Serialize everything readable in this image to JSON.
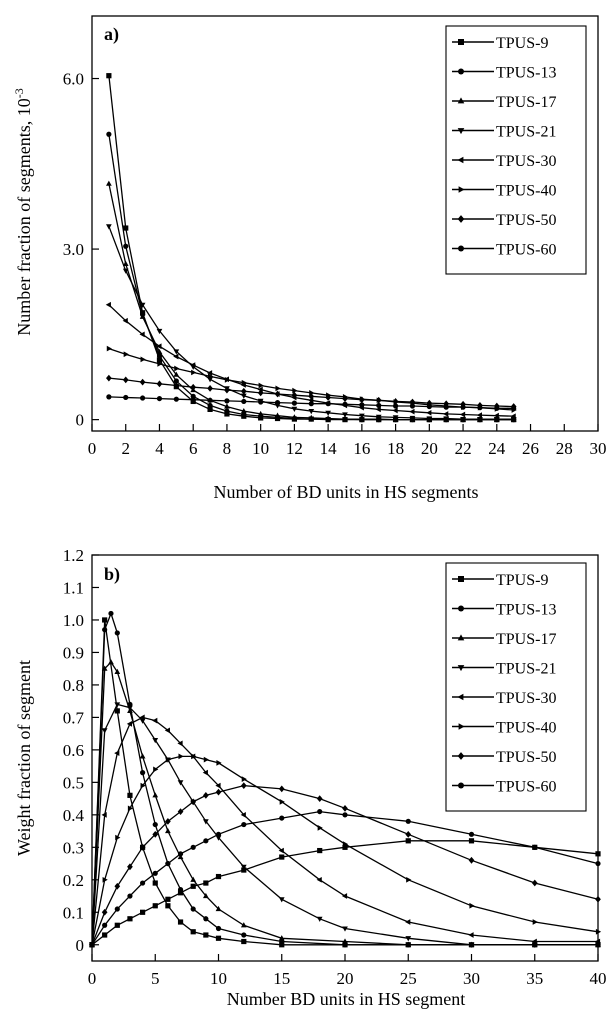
{
  "chart_data": [
    {
      "type": "line",
      "panel_label": "a)",
      "xlabel": "Number of BD units in HS segments",
      "ylabel": "Number fraction of segments, 10",
      "ylabel_sup": "-3",
      "xlim": [
        0,
        30
      ],
      "ylim": [
        -0.2,
        7.1
      ],
      "x_ticks": [
        0,
        2,
        4,
        6,
        8,
        10,
        12,
        14,
        16,
        18,
        20,
        22,
        24,
        26,
        28,
        30
      ],
      "x_tick_labels": [
        "0",
        "2",
        "4",
        "6",
        "8",
        "10",
        "12",
        "14",
        "16",
        "18",
        "20",
        "22",
        "24",
        "26",
        "28",
        "30"
      ],
      "y_ticks": [
        0,
        3.0,
        6.0
      ],
      "y_tick_labels": [
        "0",
        "3.0",
        "6.0"
      ],
      "grid": false,
      "legend_position": "top-right",
      "x": [
        1,
        2,
        3,
        4,
        5,
        6,
        7,
        8,
        9,
        10,
        11,
        12,
        13,
        14,
        15,
        16,
        17,
        18,
        19,
        20,
        21,
        22,
        23,
        24,
        25
      ],
      "series": [
        {
          "name": "TPUS-9",
          "marker": "square",
          "values": [
            6.05,
            3.37,
            1.88,
            1.05,
            0.58,
            0.32,
            0.18,
            0.1,
            0.06,
            0.03,
            0.02,
            0.01,
            0.01,
            0.0,
            0.0,
            0.0,
            0.0,
            0.0,
            0.0,
            0.0,
            0.0,
            0.0,
            0.0,
            0.0,
            0.0
          ]
        },
        {
          "name": "TPUS-13",
          "marker": "circle",
          "values": [
            5.02,
            3.05,
            1.85,
            1.12,
            0.68,
            0.41,
            0.25,
            0.15,
            0.09,
            0.06,
            0.04,
            0.02,
            0.01,
            0.01,
            0.01,
            0.0,
            0.0,
            0.0,
            0.0,
            0.0,
            0.0,
            0.0,
            0.0,
            0.0,
            0.0
          ]
        },
        {
          "name": "TPUS-17",
          "marker": "triangle-up",
          "values": [
            4.15,
            2.74,
            1.81,
            1.19,
            0.79,
            0.52,
            0.34,
            0.23,
            0.15,
            0.1,
            0.07,
            0.04,
            0.03,
            0.02,
            0.01,
            0.01,
            0.01,
            0.0,
            0.0,
            0.0,
            0.0,
            0.0,
            0.0,
            0.0,
            0.0
          ]
        },
        {
          "name": "TPUS-21",
          "marker": "triangle-down",
          "values": [
            3.4,
            2.62,
            2.02,
            1.56,
            1.2,
            0.93,
            0.71,
            0.55,
            0.42,
            0.33,
            0.25,
            0.19,
            0.15,
            0.12,
            0.09,
            0.07,
            0.05,
            0.04,
            0.03,
            0.02,
            0.02,
            0.01,
            0.01,
            0.01,
            0.01
          ]
        },
        {
          "name": "TPUS-30",
          "marker": "triangle-left",
          "values": [
            2.02,
            1.74,
            1.5,
            1.29,
            1.11,
            0.96,
            0.82,
            0.71,
            0.61,
            0.53,
            0.45,
            0.39,
            0.34,
            0.29,
            0.25,
            0.21,
            0.18,
            0.16,
            0.14,
            0.12,
            0.1,
            0.09,
            0.08,
            0.07,
            0.06
          ]
        },
        {
          "name": "TPUS-40",
          "marker": "triangle-right",
          "values": [
            1.25,
            1.15,
            1.06,
            0.98,
            0.9,
            0.83,
            0.76,
            0.7,
            0.65,
            0.6,
            0.55,
            0.51,
            0.47,
            0.43,
            0.4,
            0.36,
            0.34,
            0.31,
            0.29,
            0.26,
            0.24,
            0.22,
            0.21,
            0.19,
            0.17
          ]
        },
        {
          "name": "TPUS-50",
          "marker": "diamond",
          "values": [
            0.73,
            0.7,
            0.66,
            0.63,
            0.6,
            0.57,
            0.55,
            0.52,
            0.5,
            0.47,
            0.45,
            0.43,
            0.41,
            0.39,
            0.37,
            0.35,
            0.34,
            0.32,
            0.31,
            0.29,
            0.28,
            0.27,
            0.25,
            0.24,
            0.23
          ]
        },
        {
          "name": "TPUS-60",
          "marker": "circle",
          "values": [
            0.4,
            0.39,
            0.38,
            0.37,
            0.36,
            0.35,
            0.34,
            0.33,
            0.32,
            0.31,
            0.3,
            0.29,
            0.28,
            0.28,
            0.27,
            0.26,
            0.25,
            0.24,
            0.24,
            0.23,
            0.22,
            0.22,
            0.21,
            0.2,
            0.2
          ]
        }
      ]
    },
    {
      "type": "line",
      "panel_label": "b)",
      "xlabel": "Number BD units in HS segment",
      "ylabel": "Weight fraction of segment",
      "xlim": [
        0,
        40
      ],
      "ylim": [
        -0.05,
        1.2
      ],
      "x_ticks": [
        0,
        5,
        10,
        15,
        20,
        25,
        30,
        35,
        40
      ],
      "x_tick_labels": [
        "0",
        "5",
        "10",
        "15",
        "20",
        "25",
        "30",
        "35",
        "40"
      ],
      "y_ticks": [
        0,
        0.1,
        0.2,
        0.3,
        0.4,
        0.5,
        0.6,
        0.7,
        0.8,
        0.9,
        1.0,
        1.1,
        1.2
      ],
      "y_tick_labels": [
        "0",
        "0.1",
        "0.2",
        "0.3",
        "0.4",
        "0.5",
        "0.6",
        "0.7",
        "0.8",
        "0.9",
        "1.0",
        "1.1",
        "1.2"
      ],
      "grid": false,
      "legend_position": "top-right",
      "series": [
        {
          "name": "TPUS-9",
          "marker": "square",
          "peak": 1.0,
          "values": [
            [
              0,
              0.0
            ],
            [
              1,
              1.0
            ],
            [
              2,
              0.72
            ],
            [
              3,
              0.46
            ],
            [
              4,
              0.3
            ],
            [
              5,
              0.19
            ],
            [
              6,
              0.12
            ],
            [
              7,
              0.07
            ],
            [
              8,
              0.04
            ],
            [
              9,
              0.03
            ],
            [
              10,
              0.02
            ],
            [
              12,
              0.01
            ],
            [
              15,
              0.0
            ],
            [
              20,
              0.0
            ],
            [
              25,
              0.0
            ],
            [
              30,
              0.0
            ],
            [
              35,
              0.0
            ],
            [
              40,
              0.0
            ]
          ]
        },
        {
          "name": "TPUS-13",
          "marker": "circle",
          "peak": 1.0,
          "values": [
            [
              0,
              0.0
            ],
            [
              1,
              0.97
            ],
            [
              1.5,
              1.02
            ],
            [
              2,
              0.96
            ],
            [
              3,
              0.74
            ],
            [
              4,
              0.53
            ],
            [
              5,
              0.37
            ],
            [
              6,
              0.25
            ],
            [
              7,
              0.17
            ],
            [
              8,
              0.11
            ],
            [
              9,
              0.08
            ],
            [
              10,
              0.05
            ],
            [
              12,
              0.03
            ],
            [
              15,
              0.01
            ],
            [
              20,
              0.0
            ],
            [
              25,
              0.0
            ],
            [
              30,
              0.0
            ],
            [
              35,
              0.0
            ],
            [
              40,
              0.0
            ]
          ]
        },
        {
          "name": "TPUS-17",
          "marker": "triangle-up",
          "peak": 0.87,
          "values": [
            [
              0,
              0.0
            ],
            [
              1,
              0.85
            ],
            [
              1.5,
              0.87
            ],
            [
              2,
              0.84
            ],
            [
              3,
              0.72
            ],
            [
              4,
              0.58
            ],
            [
              5,
              0.46
            ],
            [
              6,
              0.35
            ],
            [
              7,
              0.27
            ],
            [
              8,
              0.2
            ],
            [
              9,
              0.15
            ],
            [
              10,
              0.11
            ],
            [
              12,
              0.06
            ],
            [
              15,
              0.02
            ],
            [
              20,
              0.01
            ],
            [
              25,
              0.0
            ],
            [
              30,
              0.0
            ],
            [
              35,
              0.0
            ],
            [
              40,
              0.0
            ]
          ]
        },
        {
          "name": "TPUS-21",
          "marker": "triangle-down",
          "peak": 0.75,
          "values": [
            [
              0,
              0.0
            ],
            [
              1,
              0.66
            ],
            [
              2,
              0.74
            ],
            [
              3,
              0.73
            ],
            [
              4,
              0.69
            ],
            [
              5,
              0.63
            ],
            [
              6,
              0.57
            ],
            [
              7,
              0.5
            ],
            [
              8,
              0.44
            ],
            [
              9,
              0.38
            ],
            [
              10,
              0.33
            ],
            [
              12,
              0.24
            ],
            [
              15,
              0.14
            ],
            [
              18,
              0.08
            ],
            [
              20,
              0.05
            ],
            [
              25,
              0.02
            ],
            [
              30,
              0.0
            ],
            [
              35,
              0.0
            ],
            [
              40,
              0.0
            ]
          ]
        },
        {
          "name": "TPUS-30",
          "marker": "triangle-left",
          "peak": 0.7,
          "values": [
            [
              0,
              0.0
            ],
            [
              1,
              0.4
            ],
            [
              2,
              0.59
            ],
            [
              3,
              0.68
            ],
            [
              4,
              0.7
            ],
            [
              5,
              0.69
            ],
            [
              6,
              0.66
            ],
            [
              7,
              0.62
            ],
            [
              8,
              0.58
            ],
            [
              9,
              0.53
            ],
            [
              10,
              0.49
            ],
            [
              12,
              0.4
            ],
            [
              15,
              0.29
            ],
            [
              18,
              0.2
            ],
            [
              20,
              0.15
            ],
            [
              25,
              0.07
            ],
            [
              30,
              0.03
            ],
            [
              35,
              0.01
            ],
            [
              40,
              0.01
            ]
          ]
        },
        {
          "name": "TPUS-40",
          "marker": "triangle-right",
          "peak": 0.58,
          "values": [
            [
              0,
              0.0
            ],
            [
              1,
              0.2
            ],
            [
              2,
              0.33
            ],
            [
              3,
              0.42
            ],
            [
              4,
              0.49
            ],
            [
              5,
              0.54
            ],
            [
              6,
              0.57
            ],
            [
              7,
              0.58
            ],
            [
              8,
              0.58
            ],
            [
              9,
              0.57
            ],
            [
              10,
              0.56
            ],
            [
              12,
              0.51
            ],
            [
              15,
              0.44
            ],
            [
              18,
              0.36
            ],
            [
              20,
              0.31
            ],
            [
              25,
              0.2
            ],
            [
              30,
              0.12
            ],
            [
              35,
              0.07
            ],
            [
              40,
              0.04
            ]
          ]
        },
        {
          "name": "TPUS-50",
          "marker": "diamond",
          "peak": 0.49,
          "values": [
            [
              0,
              0.0
            ],
            [
              1,
              0.1
            ],
            [
              2,
              0.18
            ],
            [
              3,
              0.24
            ],
            [
              4,
              0.3
            ],
            [
              5,
              0.34
            ],
            [
              6,
              0.38
            ],
            [
              7,
              0.41
            ],
            [
              8,
              0.44
            ],
            [
              9,
              0.46
            ],
            [
              10,
              0.47
            ],
            [
              12,
              0.49
            ],
            [
              15,
              0.48
            ],
            [
              18,
              0.45
            ],
            [
              20,
              0.42
            ],
            [
              25,
              0.34
            ],
            [
              30,
              0.26
            ],
            [
              35,
              0.19
            ],
            [
              40,
              0.14
            ]
          ]
        },
        {
          "name": "TPUS-60",
          "marker": "circle",
          "peak": 0.41,
          "values": [
            [
              0,
              0.0
            ],
            [
              1,
              0.06
            ],
            [
              2,
              0.11
            ],
            [
              3,
              0.15
            ],
            [
              4,
              0.19
            ],
            [
              5,
              0.22
            ],
            [
              6,
              0.25
            ],
            [
              7,
              0.28
            ],
            [
              8,
              0.3
            ],
            [
              9,
              0.32
            ],
            [
              10,
              0.34
            ],
            [
              12,
              0.37
            ],
            [
              15,
              0.39
            ],
            [
              18,
              0.41
            ],
            [
              20,
              0.4
            ],
            [
              25,
              0.38
            ],
            [
              30,
              0.34
            ],
            [
              35,
              0.3
            ],
            [
              40,
              0.25
            ]
          ]
        },
        {
          "name": "",
          "marker": "square",
          "peak": 0.33,
          "values": [
            [
              0,
              0.0
            ],
            [
              1,
              0.03
            ],
            [
              2,
              0.06
            ],
            [
              3,
              0.08
            ],
            [
              4,
              0.1
            ],
            [
              5,
              0.12
            ],
            [
              6,
              0.14
            ],
            [
              7,
              0.16
            ],
            [
              8,
              0.18
            ],
            [
              9,
              0.19
            ],
            [
              10,
              0.21
            ],
            [
              12,
              0.23
            ],
            [
              15,
              0.27
            ],
            [
              18,
              0.29
            ],
            [
              20,
              0.3
            ],
            [
              25,
              0.32
            ],
            [
              30,
              0.32
            ],
            [
              35,
              0.3
            ],
            [
              40,
              0.28
            ]
          ]
        }
      ]
    }
  ]
}
